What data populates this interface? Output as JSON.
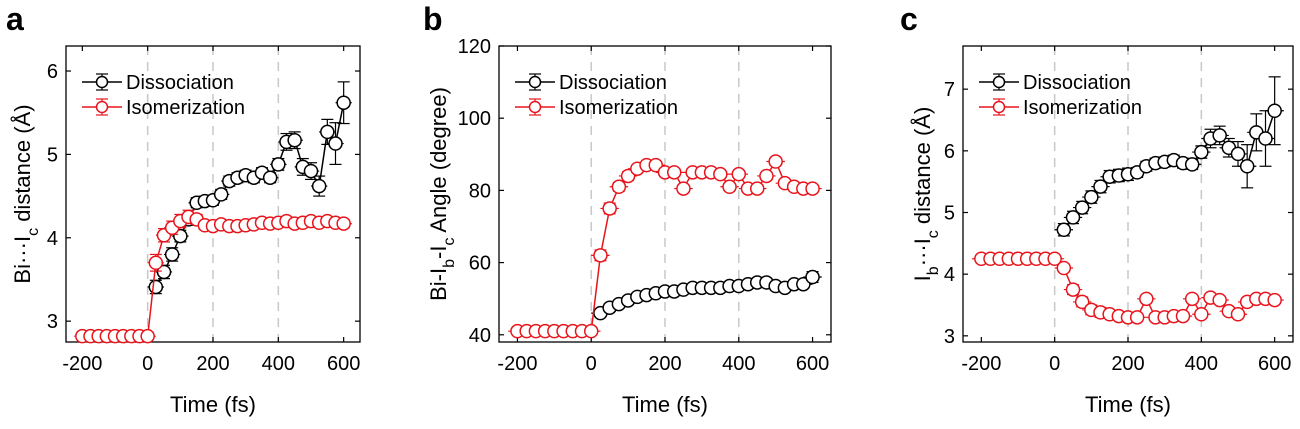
{
  "figure": {
    "colors": {
      "dissociation": "#000000",
      "isomerization": "#e8141c",
      "marker_fill": "#ffffff",
      "guide": "#c8c8c8"
    }
  },
  "chart_data": [
    {
      "panel": "a",
      "type": "line",
      "xlabel": "Time (fs)",
      "ylabel": {
        "base": "Bi···I",
        "sub": "c",
        "rest": " distance (Å)"
      },
      "xlim": [
        -250,
        650
      ],
      "ylim": [
        2.75,
        6.3
      ],
      "xticks": [
        -200,
        0,
        200,
        400,
        600
      ],
      "yticks": [
        3,
        4,
        5,
        6
      ],
      "vlines": [
        0,
        200,
        400
      ],
      "legend": [
        "Dissociation",
        "Isomerization"
      ],
      "series": [
        {
          "name": "Dissociation",
          "color": "#000000",
          "x": [
            25,
            50,
            75,
            100,
            125,
            150,
            175,
            200,
            225,
            250,
            275,
            300,
            325,
            350,
            375,
            400,
            425,
            450,
            475,
            500,
            525,
            550,
            575,
            600
          ],
          "y": [
            3.41,
            3.59,
            3.8,
            4.02,
            4.22,
            4.42,
            4.44,
            4.45,
            4.52,
            4.68,
            4.72,
            4.75,
            4.72,
            4.78,
            4.72,
            4.88,
            5.15,
            5.17,
            4.85,
            4.8,
            4.62,
            5.27,
            5.13,
            5.62
          ],
          "xerr": 25,
          "yerr": [
            0.08,
            0.08,
            0.08,
            0.07,
            0.07,
            0.06,
            0.06,
            0.06,
            0.06,
            0.06,
            0.06,
            0.06,
            0.06,
            0.06,
            0.06,
            0.07,
            0.1,
            0.1,
            0.1,
            0.1,
            0.12,
            0.15,
            0.25,
            0.25
          ]
        },
        {
          "name": "Isomerization",
          "color": "#e8141c",
          "x": [
            -200,
            -175,
            -150,
            -125,
            -100,
            -75,
            -50,
            -25,
            0,
            25,
            50,
            75,
            100,
            125,
            150,
            175,
            200,
            225,
            250,
            275,
            300,
            325,
            350,
            375,
            400,
            425,
            450,
            475,
            500,
            525,
            550,
            575,
            600
          ],
          "y": [
            2.82,
            2.82,
            2.82,
            2.82,
            2.82,
            2.82,
            2.82,
            2.82,
            2.82,
            3.7,
            4.03,
            4.12,
            4.2,
            4.25,
            4.22,
            4.15,
            4.14,
            4.16,
            4.14,
            4.14,
            4.15,
            4.16,
            4.18,
            4.17,
            4.18,
            4.2,
            4.17,
            4.18,
            4.2,
            4.18,
            4.2,
            4.18,
            4.17
          ],
          "xerr": 25,
          "yerr": [
            0.02,
            0.02,
            0.02,
            0.02,
            0.02,
            0.02,
            0.02,
            0.02,
            0.02,
            0.1,
            0.08,
            0.08,
            0.08,
            0.08,
            0.06,
            0.05,
            0.05,
            0.05,
            0.05,
            0.05,
            0.05,
            0.05,
            0.05,
            0.05,
            0.05,
            0.05,
            0.05,
            0.05,
            0.05,
            0.05,
            0.05,
            0.05,
            0.05
          ]
        }
      ]
    },
    {
      "panel": "b",
      "type": "line",
      "xlabel": "Time (fs)",
      "ylabel": {
        "base": "Bi-I",
        "sub": "b",
        "mid": "-I",
        "sub2": "c",
        "rest": " Angle (degree)"
      },
      "xlim": [
        -250,
        650
      ],
      "ylim": [
        38,
        120
      ],
      "xticks": [
        -200,
        0,
        200,
        400,
        600
      ],
      "yticks": [
        40,
        60,
        80,
        100,
        120
      ],
      "vlines": [
        0,
        200,
        400
      ],
      "legend": [
        "Dissociation",
        "Isomerization"
      ],
      "series": [
        {
          "name": "Dissociation",
          "color": "#000000",
          "x": [
            25,
            50,
            75,
            100,
            125,
            150,
            175,
            200,
            225,
            250,
            275,
            300,
            325,
            350,
            375,
            400,
            425,
            450,
            475,
            500,
            525,
            550,
            575,
            600
          ],
          "y": [
            46,
            47.5,
            48.5,
            49.5,
            50.5,
            51,
            51.5,
            52,
            52,
            52.5,
            53,
            53,
            53,
            53,
            53.5,
            53.5,
            54,
            54.5,
            54.5,
            53.5,
            53,
            54,
            54,
            56
          ],
          "xerr": 25,
          "yerr": [
            1,
            1,
            1,
            1,
            1,
            1,
            1,
            1,
            1,
            1,
            1,
            1,
            1,
            1,
            1,
            1,
            1,
            1,
            1,
            1,
            1,
            1,
            1,
            1.5
          ]
        },
        {
          "name": "Isomerization",
          "color": "#e8141c",
          "x": [
            -200,
            -175,
            -150,
            -125,
            -100,
            -75,
            -50,
            -25,
            0,
            25,
            50,
            75,
            100,
            125,
            150,
            175,
            200,
            225,
            250,
            275,
            300,
            325,
            350,
            375,
            400,
            425,
            450,
            475,
            500,
            525,
            550,
            575,
            600
          ],
          "y": [
            41,
            41,
            41,
            41,
            41,
            41,
            41,
            41,
            41,
            62,
            75,
            81,
            84,
            86,
            87,
            87,
            85,
            85,
            80.5,
            85,
            85,
            85,
            84.5,
            81,
            84.5,
            80.5,
            80.5,
            84,
            88,
            82,
            81,
            80.5,
            80.5
          ],
          "xerr": 25,
          "yerr": [
            0.5,
            0.5,
            0.5,
            0.5,
            0.5,
            0.5,
            0.5,
            0.5,
            0.5,
            1.5,
            1.5,
            1.2,
            1.2,
            1,
            1,
            1,
            1,
            1,
            1,
            1,
            1,
            1,
            1,
            1,
            1,
            1,
            1,
            1,
            1,
            1,
            1,
            1,
            1
          ]
        }
      ]
    },
    {
      "panel": "c",
      "type": "line",
      "xlabel": "Time (fs)",
      "ylabel": {
        "base": "I",
        "sub": "b",
        "mid": "···I",
        "sub2": "c",
        "rest": " distance (Å)"
      },
      "xlim": [
        -250,
        650
      ],
      "ylim": [
        2.9,
        7.7
      ],
      "xticks": [
        -200,
        0,
        200,
        400,
        600
      ],
      "yticks": [
        3,
        4,
        5,
        6,
        7
      ],
      "vlines": [
        0,
        200,
        400
      ],
      "legend": [
        "Dissociation",
        "Isomerization"
      ],
      "series": [
        {
          "name": "Dissociation",
          "color": "#000000",
          "x": [
            25,
            50,
            75,
            100,
            125,
            150,
            175,
            200,
            225,
            250,
            275,
            300,
            325,
            350,
            375,
            400,
            425,
            450,
            475,
            500,
            525,
            550,
            575,
            600
          ],
          "y": [
            4.72,
            4.92,
            5.08,
            5.25,
            5.42,
            5.58,
            5.6,
            5.62,
            5.65,
            5.75,
            5.8,
            5.82,
            5.85,
            5.8,
            5.78,
            5.98,
            6.2,
            6.25,
            6.05,
            5.95,
            5.75,
            6.3,
            6.2,
            6.65
          ],
          "xerr": 25,
          "yerr": [
            0.1,
            0.1,
            0.1,
            0.1,
            0.1,
            0.1,
            0.1,
            0.1,
            0.08,
            0.08,
            0.08,
            0.08,
            0.08,
            0.08,
            0.08,
            0.1,
            0.15,
            0.15,
            0.15,
            0.2,
            0.35,
            0.3,
            0.45,
            0.55
          ]
        },
        {
          "name": "Isomerization",
          "color": "#e8141c",
          "x": [
            -200,
            -175,
            -150,
            -125,
            -100,
            -75,
            -50,
            -25,
            0,
            25,
            50,
            75,
            100,
            125,
            150,
            175,
            200,
            225,
            250,
            275,
            300,
            325,
            350,
            375,
            400,
            425,
            450,
            475,
            500,
            525,
            550,
            575,
            600
          ],
          "y": [
            4.25,
            4.25,
            4.25,
            4.25,
            4.25,
            4.25,
            4.25,
            4.25,
            4.25,
            4.1,
            3.75,
            3.55,
            3.42,
            3.38,
            3.35,
            3.32,
            3.3,
            3.3,
            3.6,
            3.3,
            3.3,
            3.32,
            3.32,
            3.6,
            3.35,
            3.62,
            3.58,
            3.4,
            3.35,
            3.55,
            3.6,
            3.6,
            3.58
          ],
          "xerr": 25,
          "yerr": [
            0.02,
            0.02,
            0.02,
            0.02,
            0.02,
            0.02,
            0.02,
            0.02,
            0.02,
            0.06,
            0.08,
            0.08,
            0.08,
            0.08,
            0.06,
            0.05,
            0.05,
            0.05,
            0.05,
            0.05,
            0.05,
            0.05,
            0.05,
            0.05,
            0.05,
            0.05,
            0.05,
            0.05,
            0.05,
            0.05,
            0.05,
            0.05,
            0.05
          ]
        }
      ]
    }
  ]
}
